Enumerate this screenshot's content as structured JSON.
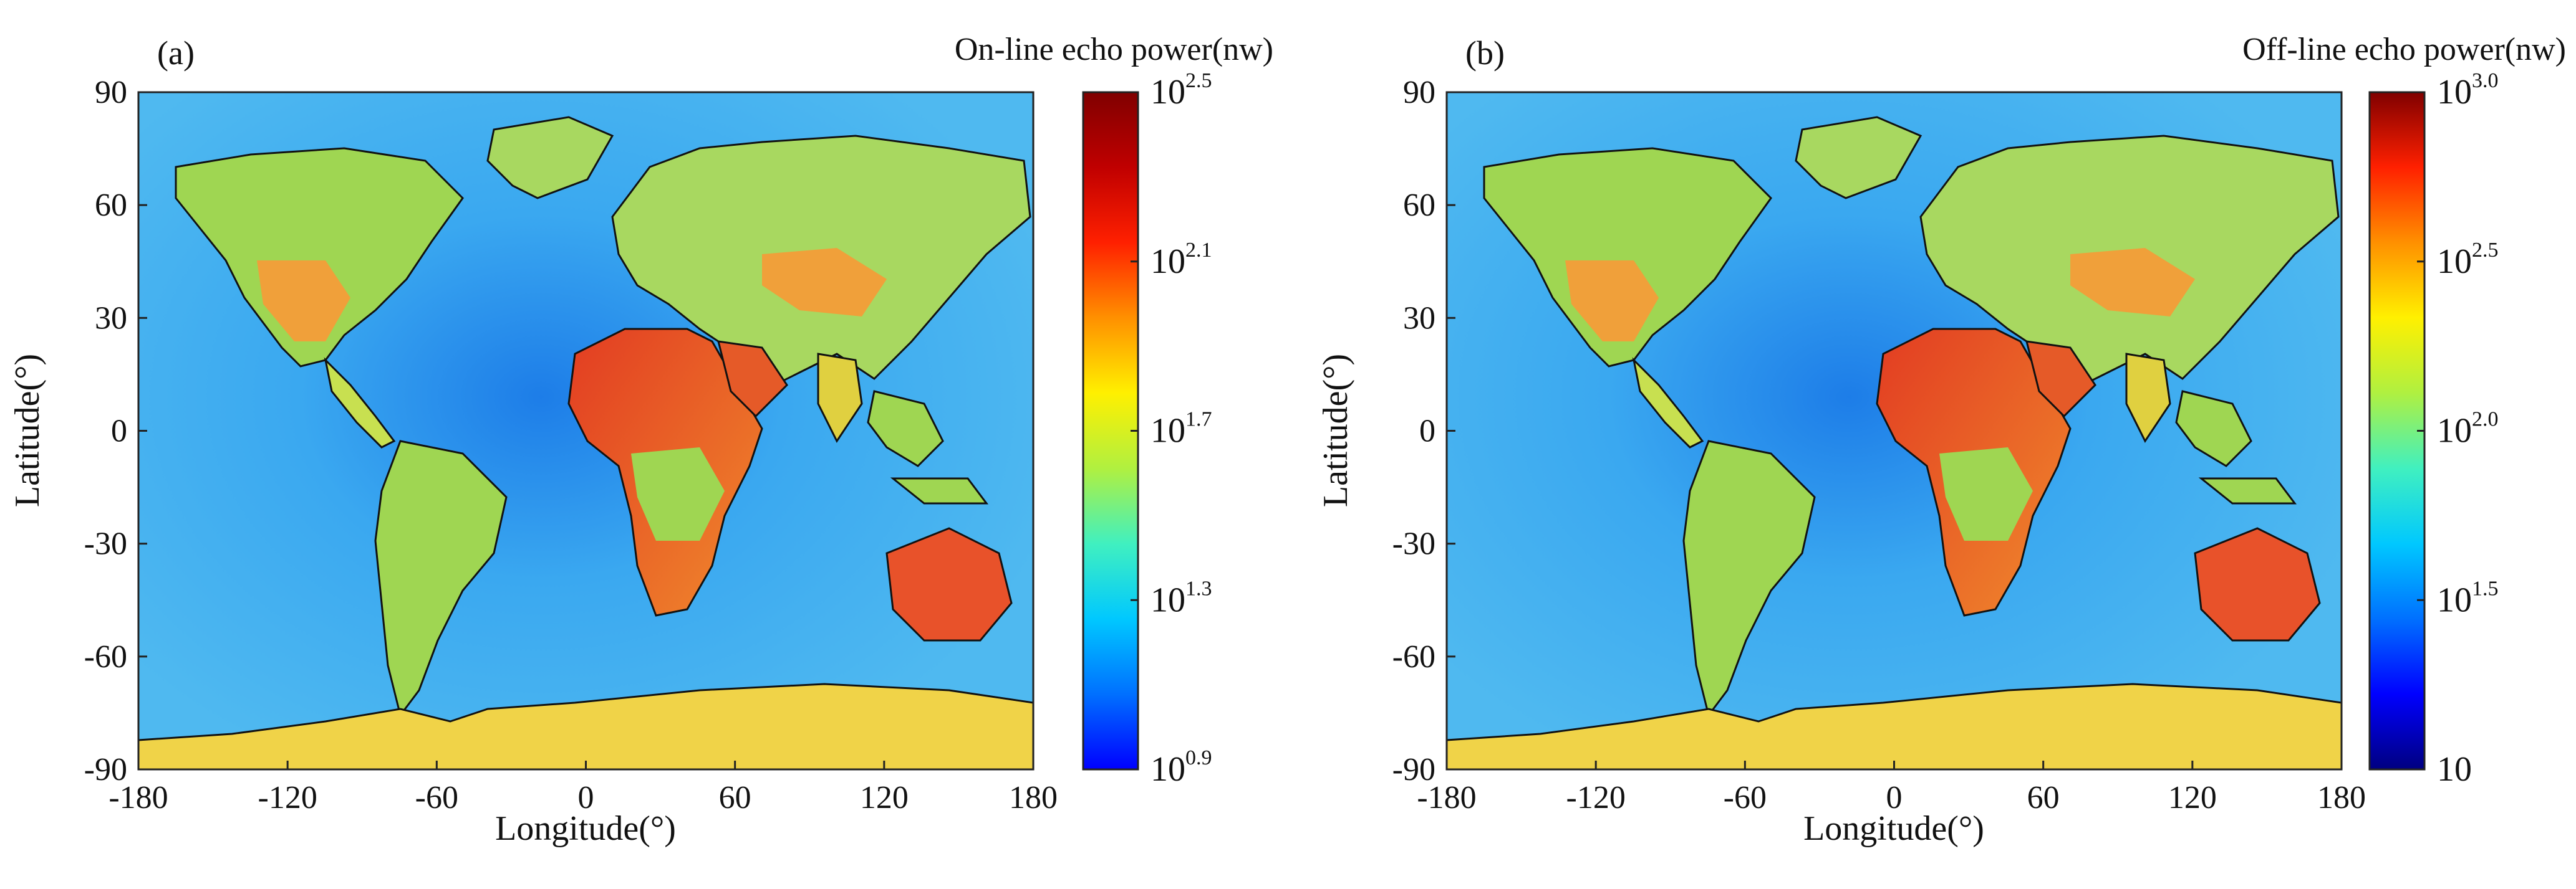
{
  "colors": {
    "ocean": "#3aa8f0",
    "ocean_dark": "#1f7fe0",
    "ocean_light": "#5cc6f2",
    "land_green": "#9fd652",
    "land_yellow": "#e8d63a",
    "land_orange": "#f09a2c",
    "land_red": "#d8482a",
    "antarctica": "#f0d348",
    "border": "#111111"
  },
  "chart_data": [
    {
      "type": "heatmap",
      "panel_label": "(a)",
      "title": "On-line echo power(nw)",
      "xlabel": "Longitude(°)",
      "ylabel": "Latitude(°)",
      "xlim": [
        -180,
        180
      ],
      "ylim": [
        -90,
        90
      ],
      "xticks": [
        "-180",
        "-120",
        "-60",
        "0",
        "60",
        "120",
        "180"
      ],
      "yticks": [
        "90",
        "60",
        "30",
        "0",
        "-30",
        "-60",
        "-90"
      ],
      "colorbar": {
        "scale": "log10",
        "range": [
          0.9,
          2.5
        ],
        "ticks": [
          {
            "base": "10",
            "exp": "2.5",
            "value": 2.5
          },
          {
            "base": "10",
            "exp": "2.1",
            "value": 2.1
          },
          {
            "base": "10",
            "exp": "1.7",
            "value": 1.7
          },
          {
            "base": "10",
            "exp": "1.3",
            "value": 1.3
          },
          {
            "base": "10",
            "exp": "0.9",
            "value": 0.9
          }
        ],
        "colormap": [
          "#0000ff",
          "#0070ff",
          "#00c8ff",
          "#40f0c0",
          "#b0f040",
          "#fff000",
          "#ff9000",
          "#ff2000",
          "#c00000",
          "#800000"
        ]
      }
    },
    {
      "type": "heatmap",
      "panel_label": "(b)",
      "title": "Off-line echo power(nw)",
      "xlabel": "Longitude(°)",
      "ylabel": "Latitude(°)",
      "xlim": [
        -180,
        180
      ],
      "ylim": [
        -90,
        90
      ],
      "xticks": [
        "-180",
        "-120",
        "-60",
        "0",
        "60",
        "120",
        "180"
      ],
      "yticks": [
        "90",
        "60",
        "30",
        "0",
        "-30",
        "-60",
        "-90"
      ],
      "colorbar": {
        "scale": "log10",
        "range": [
          1.0,
          3.0
        ],
        "ticks": [
          {
            "base": "10",
            "exp": "3.0",
            "value": 3.0
          },
          {
            "base": "10",
            "exp": "2.5",
            "value": 2.5
          },
          {
            "base": "10",
            "exp": "2.0",
            "value": 2.0
          },
          {
            "base": "10",
            "exp": "1.5",
            "value": 1.5
          },
          {
            "base": "10",
            "exp": "",
            "value": 1.0
          }
        ],
        "colormap": [
          "#000080",
          "#0000ff",
          "#0070ff",
          "#00c8ff",
          "#40f0c0",
          "#b0f040",
          "#fff000",
          "#ff9000",
          "#ff2000",
          "#800000"
        ]
      }
    }
  ]
}
